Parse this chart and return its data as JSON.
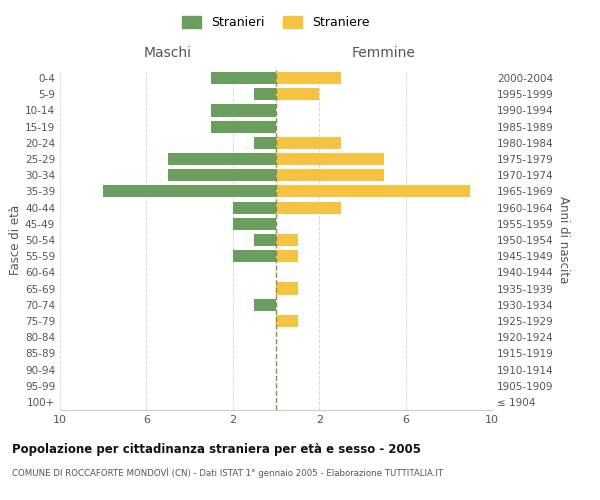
{
  "age_groups": [
    "100+",
    "95-99",
    "90-94",
    "85-89",
    "80-84",
    "75-79",
    "70-74",
    "65-69",
    "60-64",
    "55-59",
    "50-54",
    "45-49",
    "40-44",
    "35-39",
    "30-34",
    "25-29",
    "20-24",
    "15-19",
    "10-14",
    "5-9",
    "0-4"
  ],
  "birth_years": [
    "≤ 1904",
    "1905-1909",
    "1910-1914",
    "1915-1919",
    "1920-1924",
    "1925-1929",
    "1930-1934",
    "1935-1939",
    "1940-1944",
    "1945-1949",
    "1950-1954",
    "1955-1959",
    "1960-1964",
    "1965-1969",
    "1970-1974",
    "1975-1979",
    "1980-1984",
    "1985-1989",
    "1990-1994",
    "1995-1999",
    "2000-2004"
  ],
  "males": [
    0,
    0,
    0,
    0,
    0,
    0,
    1,
    0,
    0,
    2,
    1,
    2,
    2,
    8,
    5,
    5,
    1,
    3,
    3,
    1,
    3
  ],
  "females": [
    0,
    0,
    0,
    0,
    0,
    1,
    0,
    1,
    0,
    1,
    1,
    0,
    3,
    9,
    5,
    5,
    3,
    0,
    0,
    2,
    3
  ],
  "male_color": "#6a9e5e",
  "female_color": "#f5c242",
  "center_line_color": "#8a8a50",
  "grid_color": "#d8d8d8",
  "title": "Popolazione per cittadinanza straniera per età e sesso - 2005",
  "subtitle": "COMUNE DI ROCCAFORTE MONDOVÌ (CN) - Dati ISTAT 1° gennaio 2005 - Elaborazione TUTTITALIA.IT",
  "xlabel_left": "Maschi",
  "xlabel_right": "Femmine",
  "ylabel_left": "Fasce di età",
  "ylabel_right": "Anni di nascita",
  "legend_male": "Stranieri",
  "legend_female": "Straniere",
  "xlim": 10
}
